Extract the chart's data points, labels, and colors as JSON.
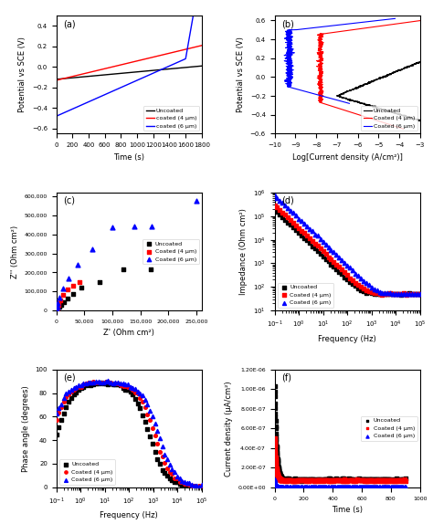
{
  "fig_size": [
    4.74,
    5.74
  ],
  "dpi": 100,
  "background": "#ffffff",
  "panel_a": {
    "label": "(a)",
    "xlabel": "Time (s)",
    "ylabel": "Potential vs SCE (V)",
    "xlim": [
      0,
      1800
    ],
    "ylim": [
      -0.65,
      0.5
    ],
    "yticks": [
      -0.6,
      -0.4,
      -0.2,
      0.0,
      0.2,
      0.4
    ],
    "xticks": [
      0,
      200,
      400,
      600,
      800,
      1000,
      1200,
      1400,
      1600,
      1800
    ],
    "legend": [
      "Uncoated",
      "coated (4 μm)",
      "coated (6 μm)"
    ],
    "colors": [
      "black",
      "red",
      "blue"
    ]
  },
  "panel_b": {
    "label": "(b)",
    "xlabel": "Log[Current density (A/cm²)]",
    "ylabel": "Potential vs SCE (V)",
    "xlim": [
      -10,
      -3
    ],
    "ylim": [
      -0.6,
      0.65
    ],
    "yticks": [
      -0.6,
      -0.4,
      -0.2,
      0.0,
      0.2,
      0.4,
      0.6
    ],
    "xticks": [
      -10,
      -9,
      -8,
      -7,
      -6,
      -5,
      -4,
      -3
    ],
    "legend": [
      "Uncoated",
      "Coated (4 μm)",
      "Coated (6 μm)"
    ],
    "colors": [
      "black",
      "red",
      "blue"
    ]
  },
  "panel_c": {
    "label": "(c)",
    "xlabel": "Z' (Ohm cm²)",
    "ylabel": "Z'' (Ohm cm²)",
    "xlim": [
      0,
      260000
    ],
    "ylim": [
      0,
      620000
    ],
    "xticks": [
      0,
      50000,
      100000,
      150000,
      200000,
      250000
    ],
    "yticks": [
      0,
      100000,
      200000,
      300000,
      400000,
      500000,
      600000
    ],
    "legend": [
      "Uncoated",
      "Coated (4 μm)",
      "Coated (6 μm)"
    ],
    "colors": [
      "black",
      "red",
      "blue"
    ],
    "uncoated_x": [
      500,
      1500,
      3000,
      5000,
      8000,
      13000,
      20000,
      30000,
      45000,
      78000,
      120000,
      168000
    ],
    "uncoated_y": [
      1000,
      4000,
      10000,
      18000,
      30000,
      45000,
      65000,
      85000,
      120000,
      150000,
      215000,
      215000
    ],
    "coated4_x": [
      200,
      500,
      1000,
      2000,
      4000,
      7000,
      12000,
      20000,
      30000,
      42000
    ],
    "coated4_y": [
      500,
      2000,
      6000,
      15000,
      30000,
      55000,
      80000,
      110000,
      130000,
      148000
    ],
    "coated6_x": [
      100,
      300,
      700,
      1500,
      3000,
      6000,
      12000,
      22000,
      38000,
      65000,
      100000,
      140000,
      170000,
      250000
    ],
    "coated6_y": [
      500,
      2000,
      7000,
      18000,
      38000,
      70000,
      115000,
      170000,
      240000,
      320000,
      435000,
      440000,
      440000,
      575000
    ]
  },
  "panel_d": {
    "label": "(d)",
    "xlabel": "Frequency (Hz)",
    "ylabel": "Impedance (Ohm cm²)",
    "xlim_log": [
      -1,
      5
    ],
    "ylim_log": [
      1,
      6
    ],
    "legend": [
      "Uncoated",
      "Coated (4 μm)",
      "Coated (6 μm)"
    ],
    "colors": [
      "black",
      "red",
      "blue"
    ]
  },
  "panel_e": {
    "label": "(e)",
    "xlabel": "Frequency (Hz)",
    "ylabel": "Phase angle (degrees)",
    "xlim_log": [
      -1,
      5
    ],
    "ylim": [
      0,
      100
    ],
    "legend": [
      "Uncoated",
      "Coated (4 μm)",
      "Coated (6 μm)"
    ],
    "colors": [
      "black",
      "red",
      "blue"
    ]
  },
  "panel_f": {
    "label": "(f)",
    "xlabel": "Time (s)",
    "ylabel": "Current density (μA/cm²)",
    "xlim": [
      0,
      1000
    ],
    "ylim": [
      0.0,
      1.2e-06
    ],
    "yticks_labels": [
      "0.00E+00",
      "2.00E-07",
      "4.00E-07",
      "6.00E-07",
      "8.00E-07",
      "1.00E-06",
      "1.20E-06"
    ],
    "legend": [
      "Uncoated",
      "Coated (4 μm)",
      "Coated (6 μm)"
    ],
    "colors": [
      "black",
      "red",
      "blue"
    ]
  }
}
